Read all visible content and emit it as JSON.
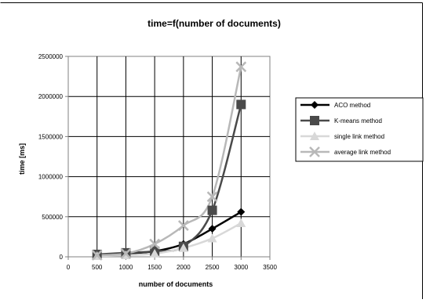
{
  "chart_data": {
    "type": "line",
    "title": "time=f(number of documents)",
    "xlabel": "number of documents",
    "ylabel": "time [ms]",
    "xlim": [
      0,
      3500
    ],
    "ylim": [
      0,
      2500000
    ],
    "xticks": [
      0,
      500,
      1000,
      1500,
      2000,
      2500,
      3000,
      3500
    ],
    "yticks": [
      0,
      500000,
      1000000,
      1500000,
      2000000,
      2500000
    ],
    "grid": true,
    "legend_position": "right",
    "series": [
      {
        "name": "ACO method",
        "color": "#000000",
        "marker": "diamond",
        "x": [
          500,
          1000,
          1500,
          2000,
          2500,
          3000
        ],
        "y": [
          20000,
          40000,
          70000,
          160000,
          350000,
          560000
        ]
      },
      {
        "name": "K-means method",
        "color": "#4a4a4a",
        "marker": "square",
        "x": [
          500,
          1000,
          1500,
          2000,
          2500,
          3000
        ],
        "y": [
          30000,
          50000,
          70000,
          130000,
          580000,
          1900000
        ]
      },
      {
        "name": "single link method",
        "color": "#d8d8d8",
        "marker": "triangle",
        "x": [
          500,
          1000,
          1500,
          2000,
          2500,
          3000
        ],
        "y": [
          10000,
          20000,
          40000,
          110000,
          230000,
          420000
        ]
      },
      {
        "name": "average link method",
        "color": "#b8b8b8",
        "marker": "x",
        "x": [
          500,
          1000,
          1500,
          2000,
          2500,
          3000
        ],
        "y": [
          20000,
          40000,
          160000,
          390000,
          750000,
          2370000
        ]
      }
    ]
  }
}
